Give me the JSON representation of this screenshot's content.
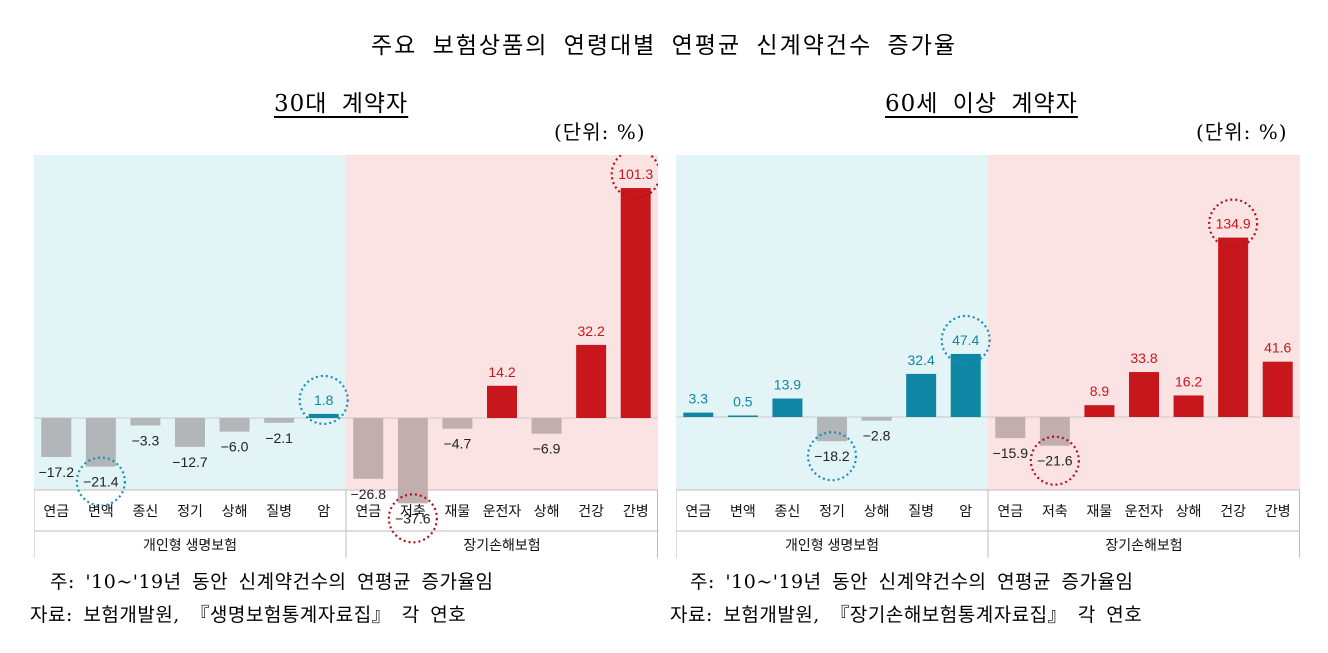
{
  "title": "주요 보험상품의 연령대별 연평균 신계약건수 증가율",
  "colors": {
    "life_bg": "#e3f4f6",
    "nonlife_bg": "#fbe3e3",
    "life_pos": "#0f86a3",
    "nonlife_pos": "#c8161d",
    "neg_life": "#b2b6b8",
    "neg_nonlife": "#c2aeae",
    "label_life_pos": "#0f86a3",
    "label_nonlife_pos": "#c8161d",
    "label_neg": "#222222",
    "circle_life": "#1a8fb4",
    "circle_nonlife": "#b01419"
  },
  "chart_data": [
    {
      "type": "bar",
      "title": "30대 계약자",
      "unit_label": "(단위: %)",
      "categories": [
        "연금",
        "변액",
        "종신",
        "정기",
        "상해",
        "질병",
        "암",
        "연금",
        "저축",
        "재물",
        "운전자",
        "상해",
        "건강",
        "간병"
      ],
      "values": [
        -17.2,
        -21.4,
        -3.3,
        -12.7,
        -6.0,
        -2.1,
        1.8,
        -26.8,
        -37.6,
        -4.7,
        14.2,
        -6.9,
        32.2,
        101.3
      ],
      "value_labels": [
        "−17.2",
        "−21.4",
        "−3.3",
        "−12.7",
        "−6.0",
        "−2.1",
        "1.8",
        "−26.8",
        "−37.6",
        "−4.7",
        "14.2",
        "−6.9",
        "32.2",
        "101.3"
      ],
      "circled": [
        1,
        6,
        8,
        13
      ],
      "groups": [
        {
          "name": "개인형 생명보험",
          "start": 0,
          "end": 6,
          "kind": "life"
        },
        {
          "name": "장기손해보험",
          "start": 7,
          "end": 13,
          "kind": "nonlife"
        }
      ],
      "ylim": [
        -45,
        110
      ]
    },
    {
      "type": "bar",
      "title": "60세 이상 계약자",
      "unit_label": "(단위: %)",
      "categories": [
        "연금",
        "변액",
        "종신",
        "정기",
        "상해",
        "질병",
        "암",
        "연금",
        "저축",
        "재물",
        "운전자",
        "상해",
        "건강",
        "간병"
      ],
      "values": [
        3.3,
        0.5,
        13.9,
        -18.2,
        -2.8,
        32.4,
        47.4,
        -15.9,
        -21.6,
        8.9,
        33.8,
        16.2,
        134.9,
        41.6
      ],
      "value_labels": [
        "3.3",
        "0.5",
        "13.9",
        "−18.2",
        "−2.8",
        "32.4",
        "47.4",
        "−15.9",
        "−21.6",
        "8.9",
        "33.8",
        "16.2",
        "134.9",
        "41.6"
      ],
      "circled": [
        3,
        6,
        8,
        12
      ],
      "groups": [
        {
          "name": "개인형 생명보험",
          "start": 0,
          "end": 6,
          "kind": "life"
        },
        {
          "name": "장기손해보험",
          "start": 7,
          "end": 13,
          "kind": "nonlife"
        }
      ],
      "ylim": [
        -45,
        140
      ]
    }
  ],
  "notes_left": {
    "note": "주: '10~'19년 동안 신계약건수의 연평균 증가율임",
    "source": "자료: 보험개발원, 『생명보험통계자료집』 각 연호"
  },
  "notes_right": {
    "note": "주: '10~'19년 동안 신계약건수의 연평균 증가율임",
    "source": "자료: 보험개발원, 『장기손해보험통계자료집』 각 연호"
  }
}
